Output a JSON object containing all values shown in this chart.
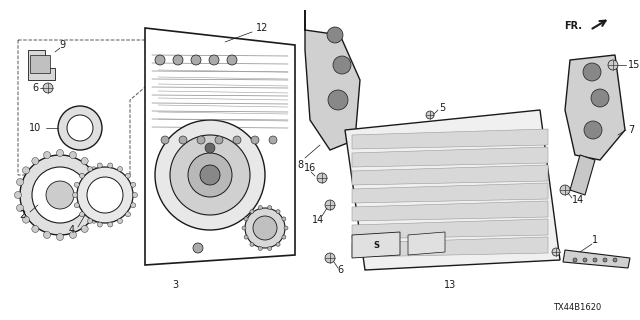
{
  "bg_color": "#ffffff",
  "diagram_code": "TX44B1620",
  "lc": "#1a1a1a",
  "gray1": "#888888",
  "gray2": "#bbbbbb",
  "gray3": "#dddddd"
}
